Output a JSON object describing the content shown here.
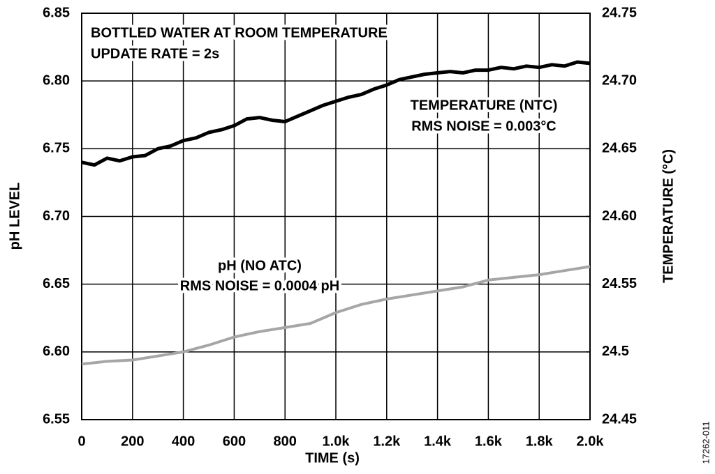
{
  "chart_data": {
    "type": "line",
    "xlabel": "TIME (s)",
    "ylabel": "pH LEVEL",
    "y2label": "TEMPERATURE (°C)",
    "annotations": [
      "BOTTLED WATER AT ROOM TEMPERATURE",
      "UPDATE RATE = 2s",
      "RMS NOISE = 0.003°C",
      "RMS NOISE = 0.0004 pH"
    ],
    "figure_id": "17262-011",
    "xlim": [
      0,
      2000
    ],
    "xticks": [
      0,
      200,
      400,
      600,
      800,
      {
        "value": 1000,
        "label": "1.0k"
      },
      {
        "value": 1200,
        "label": "1.2k"
      },
      {
        "value": 1400,
        "label": "1.4k"
      },
      {
        "value": 1600,
        "label": "1.6k"
      },
      {
        "value": 1800,
        "label": "1.8k"
      },
      {
        "value": 2000,
        "label": "2.0k"
      }
    ],
    "ylim": [
      6.55,
      6.85
    ],
    "yticks": [
      6.55,
      {
        "value": 6.6,
        "label": "6.60"
      },
      6.65,
      {
        "value": 6.7,
        "label": "6.70"
      },
      6.75,
      {
        "value": 6.8,
        "label": "6.80"
      },
      6.85
    ],
    "y2lim": [
      24.45,
      24.75
    ],
    "y2ticks": [
      24.45,
      24.5,
      24.55,
      {
        "value": 24.6,
        "label": "24.60"
      },
      24.65,
      {
        "value": 24.7,
        "label": "24.70"
      },
      24.75
    ],
    "grid": true,
    "series": [
      {
        "name": "TEMPERATURE (NTC)",
        "color": "#000000",
        "axis": "y2",
        "x": [
          0,
          50,
          100,
          150,
          200,
          250,
          300,
          350,
          400,
          450,
          500,
          550,
          600,
          650,
          700,
          750,
          800,
          850,
          900,
          950,
          1000,
          1050,
          1100,
          1150,
          1200,
          1250,
          1300,
          1350,
          1400,
          1450,
          1500,
          1550,
          1600,
          1650,
          1700,
          1750,
          1800,
          1850,
          1900,
          1950,
          2000
        ],
        "values": [
          24.64,
          24.638,
          24.643,
          24.641,
          24.644,
          24.645,
          24.65,
          24.652,
          24.656,
          24.658,
          24.662,
          24.664,
          24.667,
          24.672,
          24.673,
          24.671,
          24.67,
          24.674,
          24.678,
          24.682,
          24.685,
          24.688,
          24.69,
          24.694,
          24.697,
          24.701,
          24.703,
          24.705,
          24.706,
          24.707,
          24.706,
          24.708,
          24.708,
          24.71,
          24.709,
          24.711,
          24.71,
          24.712,
          24.711,
          24.714,
          24.713
        ]
      },
      {
        "name": "pH (NO ATC)",
        "color": "#a6a6a6",
        "x": [
          0,
          100,
          200,
          300,
          400,
          500,
          600,
          700,
          800,
          900,
          1000,
          1100,
          1200,
          1300,
          1400,
          1500,
          1600,
          1700,
          1800,
          1900,
          2000
        ],
        "values": [
          6.591,
          6.593,
          6.594,
          6.597,
          6.6,
          6.605,
          6.611,
          6.615,
          6.618,
          6.621,
          6.629,
          6.635,
          6.639,
          6.642,
          6.645,
          6.648,
          6.653,
          6.655,
          6.657,
          6.66,
          6.663
        ]
      }
    ]
  }
}
